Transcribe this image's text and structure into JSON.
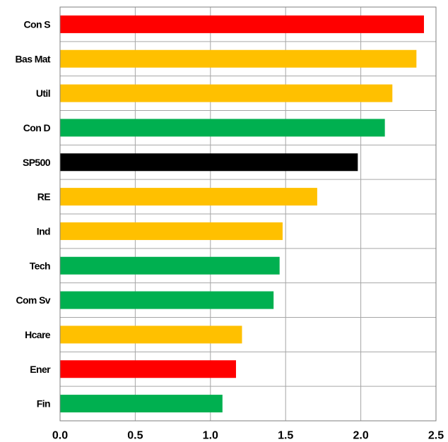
{
  "chart_data": {
    "type": "bar",
    "orientation": "horizontal",
    "categories": [
      "Con S",
      "Bas Mat",
      "Util",
      "Con D",
      "SP500",
      "RE",
      "Ind",
      "Tech",
      "Com Sv",
      "Hcare",
      "Ener",
      "Fin"
    ],
    "values": [
      2.42,
      2.37,
      2.21,
      2.16,
      1.98,
      1.71,
      1.48,
      1.46,
      1.42,
      1.21,
      1.17,
      1.08
    ],
    "colors": [
      "#ff0000",
      "#ffc000",
      "#ffc000",
      "#00b050",
      "#000000",
      "#ffc000",
      "#ffc000",
      "#00b050",
      "#00b050",
      "#ffc000",
      "#ff0000",
      "#00b050"
    ],
    "xlim": [
      0,
      2.5
    ],
    "xticks": [
      "0.0",
      "0.5",
      "1.0",
      "1.5",
      "2.0",
      "2.5"
    ],
    "xtick_values": [
      0,
      0.5,
      1.0,
      1.5,
      2.0,
      2.5
    ],
    "title": "",
    "xlabel": "",
    "ylabel": "",
    "grid": true,
    "legend": "none"
  }
}
